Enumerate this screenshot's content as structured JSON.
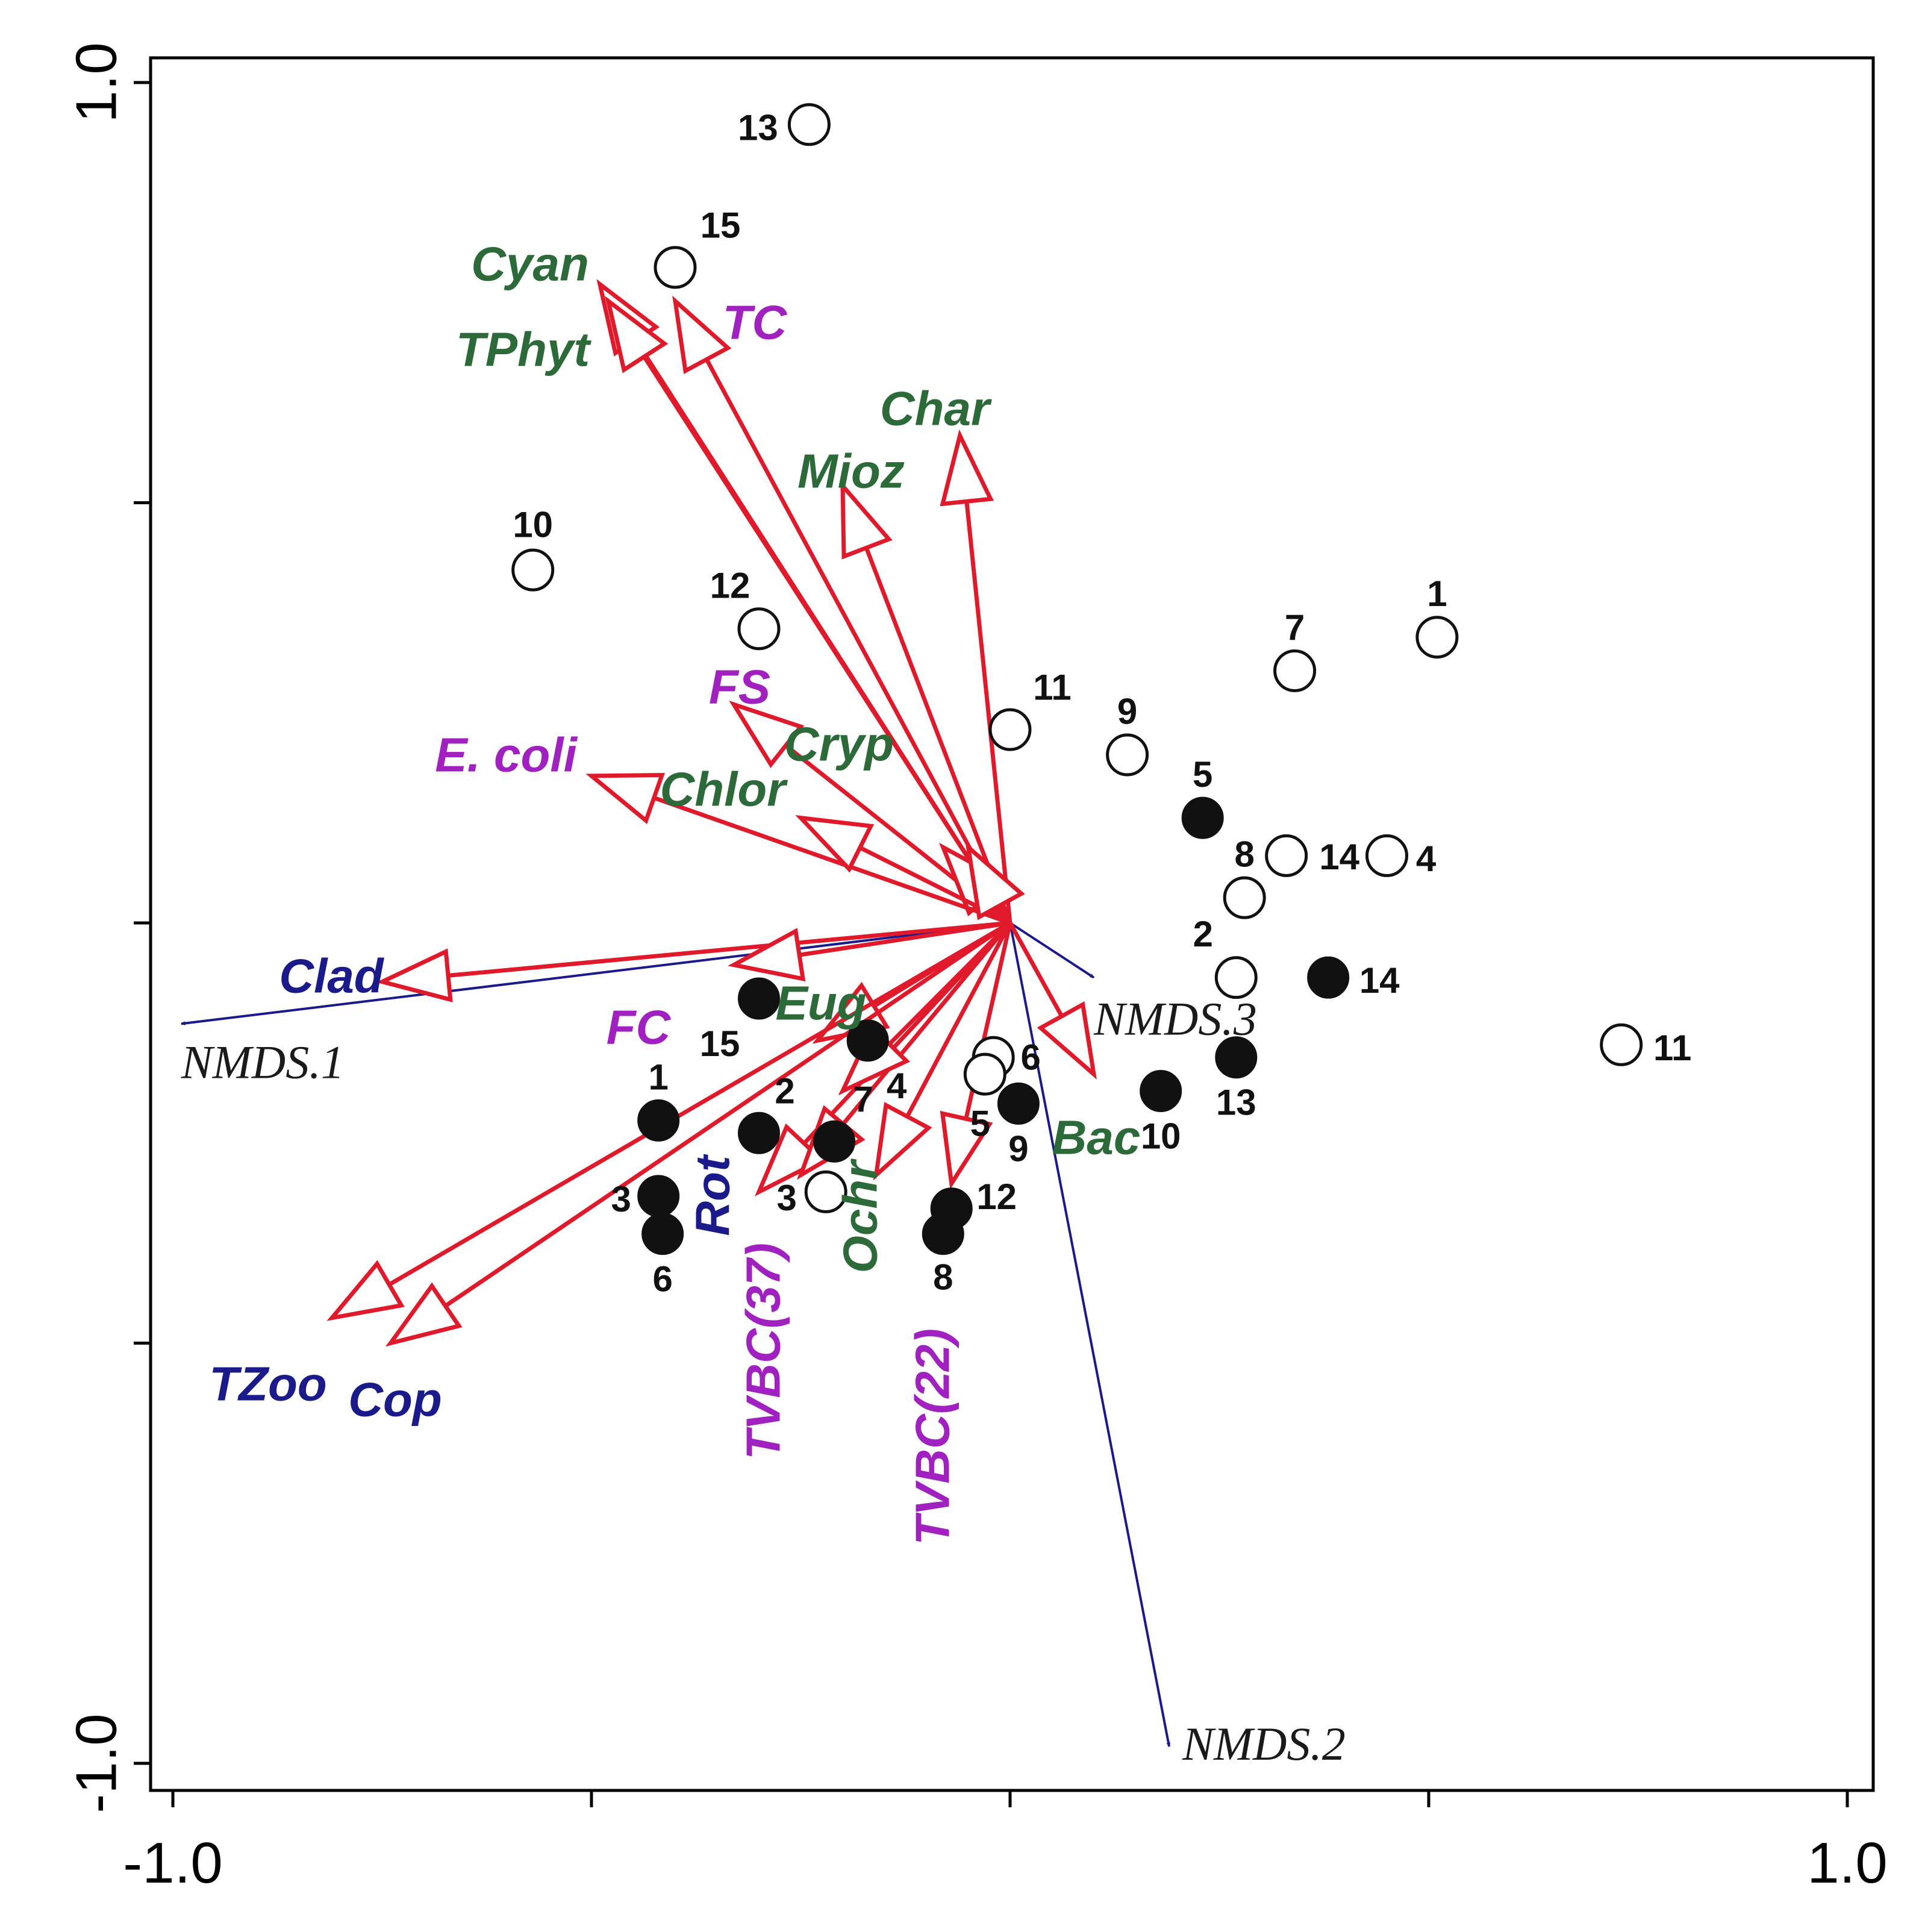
{
  "chart_data": {
    "type": "scatter",
    "subtype": "NMDS ordination biplot",
    "title": "",
    "xlabel": "",
    "ylabel": "",
    "xlim": [
      -1.0,
      1.0
    ],
    "ylim": [
      -1.0,
      1.0
    ],
    "x_tick_labels": [
      {
        "value": -1.0,
        "label": "-1.0"
      },
      {
        "value": 1.0,
        "label": "1.0"
      }
    ],
    "y_tick_labels": [
      {
        "value": 1.0,
        "label": "1.0"
      },
      {
        "value": -1.0,
        "label": "-1.0"
      }
    ],
    "x_ticks": [
      -1.0,
      -0.5,
      0.0,
      0.5,
      1.0
    ],
    "y_ticks": [
      1.0,
      0.5,
      0.0,
      -0.5,
      -1.0
    ],
    "colors": {
      "arrow": "#e0192b",
      "nmds_axis": "#1a1a8a",
      "phytoplankton": "#2d6a3a",
      "microbial": "#a020c0",
      "zooplankton": "#1a1a8a",
      "point": "#111111"
    },
    "sites_open": [
      {
        "label": "13",
        "x": -0.24,
        "y": 0.95
      },
      {
        "label": "15",
        "x": -0.4,
        "y": 0.78
      },
      {
        "label": "10",
        "x": -0.57,
        "y": 0.42
      },
      {
        "label": "12",
        "x": -0.3,
        "y": 0.35
      },
      {
        "label": "11",
        "x": 0.0,
        "y": 0.23
      },
      {
        "label": "9",
        "x": 0.14,
        "y": 0.2
      },
      {
        "label": "7",
        "x": 0.34,
        "y": 0.3
      },
      {
        "label": "1",
        "x": 0.51,
        "y": 0.34
      },
      {
        "label": "14",
        "x": 0.33,
        "y": 0.08
      },
      {
        "label": "4",
        "x": 0.45,
        "y": 0.08
      },
      {
        "label": "8",
        "x": 0.28,
        "y": 0.03
      },
      {
        "label": "2",
        "x": 0.27,
        "y": -0.065
      },
      {
        "label": "6",
        "x": -0.02,
        "y": -0.16
      },
      {
        "label": "5",
        "x": -0.03,
        "y": -0.18
      },
      {
        "label": "11",
        "x": 0.73,
        "y": -0.145
      },
      {
        "label": "3",
        "x": -0.22,
        "y": -0.32
      }
    ],
    "sites_filled": [
      {
        "label": "5",
        "x": 0.23,
        "y": 0.125
      },
      {
        "label": "14",
        "x": 0.38,
        "y": -0.065
      },
      {
        "label": "13",
        "x": 0.27,
        "y": -0.16
      },
      {
        "label": "10",
        "x": 0.18,
        "y": -0.2
      },
      {
        "label": "9",
        "x": 0.01,
        "y": -0.215
      },
      {
        "label": "15",
        "x": -0.3,
        "y": -0.09
      },
      {
        "label": "4",
        "x": -0.17,
        "y": -0.14
      },
      {
        "label": "7",
        "x": -0.21,
        "y": -0.26
      },
      {
        "label": "2",
        "x": -0.3,
        "y": -0.25
      },
      {
        "label": "1",
        "x": -0.42,
        "y": -0.235
      },
      {
        "label": "3",
        "x": -0.42,
        "y": -0.325
      },
      {
        "label": "6",
        "x": -0.415,
        "y": -0.37
      },
      {
        "label": "12",
        "x": -0.07,
        "y": -0.34
      },
      {
        "label": "8",
        "x": -0.08,
        "y": -0.37
      }
    ],
    "vectors": [
      {
        "label": "Cyan",
        "group": "phytoplankton",
        "x": -0.49,
        "y": 0.76
      },
      {
        "label": "TPhyt",
        "group": "phytoplankton",
        "x": -0.48,
        "y": 0.74
      },
      {
        "label": "TC",
        "group": "microbial",
        "x": -0.4,
        "y": 0.74
      },
      {
        "label": "Char",
        "group": "phytoplankton",
        "x": -0.06,
        "y": 0.58
      },
      {
        "label": "Mioz",
        "group": "phytoplankton",
        "x": -0.2,
        "y": 0.52
      },
      {
        "label": "FS",
        "group": "microbial",
        "x": -0.33,
        "y": 0.26
      },
      {
        "label": "Cryp",
        "group": "phytoplankton",
        "x": -0.08,
        "y": 0.09
      },
      {
        "label": "E. coli",
        "group": "microbial",
        "x": -0.5,
        "y": 0.175
      },
      {
        "label": "Chlor",
        "group": "phytoplankton",
        "x": -0.25,
        "y": 0.125
      },
      {
        "label": "Clad",
        "group": "zooplankton",
        "x": -0.75,
        "y": -0.07
      },
      {
        "label": "FC",
        "group": "microbial",
        "x": -0.33,
        "y": -0.05
      },
      {
        "label": "Eug",
        "group": "phytoplankton",
        "x": -0.23,
        "y": -0.14
      },
      {
        "label": "Bac",
        "group": "phytoplankton",
        "x": 0.1,
        "y": -0.18
      },
      {
        "label": "TZoo",
        "group": "zooplankton",
        "x": -0.81,
        "y": -0.47
      },
      {
        "label": "Cop",
        "group": "zooplankton",
        "x": -0.74,
        "y": -0.5
      },
      {
        "label": "Rot",
        "group": "zooplankton",
        "x": -0.3,
        "y": -0.32
      },
      {
        "label": "TVBC(37)",
        "group": "microbial",
        "x": -0.25,
        "y": -0.3
      },
      {
        "label": "Ochr",
        "group": "phytoplankton",
        "x": -0.16,
        "y": -0.3
      },
      {
        "label": "TVBC(22)",
        "group": "microbial",
        "x": -0.07,
        "y": -0.31
      },
      {
        "label": "",
        "group": "phytoplankton",
        "x": -0.2,
        "y": -0.2
      },
      {
        "label": "",
        "group": "phytoplankton",
        "x": -0.05,
        "y": 0.09
      }
    ],
    "nmds_axes": [
      {
        "label": "NMDS.1",
        "x": -0.99,
        "y": -0.12
      },
      {
        "label": "NMDS.2",
        "x": 0.19,
        "y": -0.98
      },
      {
        "label": "NMDS.3",
        "x": 0.1,
        "y": -0.065
      }
    ]
  }
}
